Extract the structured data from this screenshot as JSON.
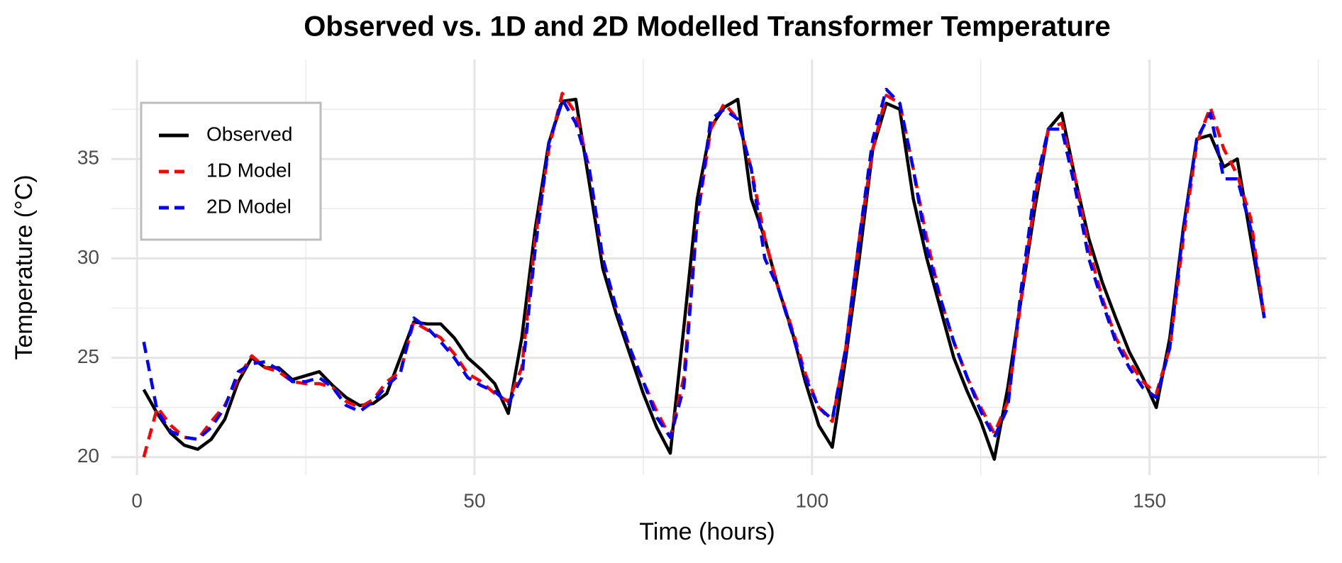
{
  "chart_data": {
    "type": "line",
    "title": "Observed vs. 1D and 2D Modelled Transformer Temperature",
    "x_label": "Time (hours)",
    "y_label": "Temperature (°C)",
    "x": [
      1,
      3,
      5,
      7,
      9,
      11,
      13,
      15,
      17,
      19,
      21,
      23,
      25,
      27,
      29,
      31,
      33,
      35,
      37,
      39,
      41,
      43,
      45,
      47,
      49,
      51,
      53,
      55,
      57,
      59,
      61,
      63,
      65,
      67,
      69,
      71,
      73,
      75,
      77,
      79,
      81,
      83,
      85,
      87,
      89,
      91,
      93,
      95,
      97,
      99,
      101,
      103,
      105,
      107,
      109,
      111,
      113,
      115,
      117,
      119,
      121,
      123,
      125,
      127,
      129,
      131,
      133,
      135,
      137,
      139,
      141,
      143,
      145,
      147,
      149,
      151,
      153,
      155,
      157,
      159,
      161,
      163,
      165,
      167
    ],
    "series": [
      {
        "name": "Observed",
        "color": "#000000",
        "linetype": "solid",
        "values": [
          23.4,
          22.2,
          21.2,
          20.6,
          20.4,
          20.9,
          21.9,
          23.8,
          25.0,
          24.5,
          24.5,
          23.9,
          24.1,
          24.3,
          23.6,
          23.0,
          22.6,
          22.7,
          23.2,
          25.0,
          26.8,
          26.7,
          26.7,
          26.0,
          25.0,
          24.4,
          23.7,
          22.2,
          26.0,
          31.5,
          35.8,
          37.9,
          38.0,
          33.8,
          29.5,
          27.2,
          25.2,
          23.2,
          21.5,
          20.2,
          26.5,
          33.0,
          36.6,
          37.6,
          38.0,
          33.0,
          31.0,
          28.5,
          26.4,
          23.8,
          21.6,
          20.5,
          25.0,
          30.0,
          35.5,
          37.8,
          37.5,
          33.0,
          30.0,
          27.5,
          25.0,
          23.3,
          21.8,
          19.9,
          23.5,
          28.0,
          32.5,
          36.5,
          37.3,
          34.0,
          31.0,
          28.8,
          27.0,
          25.3,
          24.0,
          22.5,
          26.0,
          31.5,
          36.0,
          36.2,
          34.6,
          35.0,
          31.0,
          27.0
        ]
      },
      {
        "name": "1D Model",
        "color": "#ff0000",
        "linetype": "dashed",
        "values": [
          20.0,
          22.5,
          21.6,
          21.0,
          20.9,
          21.8,
          22.6,
          24.0,
          25.1,
          24.5,
          24.3,
          23.8,
          23.7,
          23.7,
          23.5,
          22.8,
          22.5,
          22.9,
          23.8,
          24.3,
          26.8,
          26.4,
          26.0,
          25.2,
          24.2,
          23.8,
          23.2,
          22.8,
          24.5,
          31.0,
          35.5,
          38.3,
          37.3,
          34.5,
          30.0,
          27.5,
          25.5,
          23.8,
          22.3,
          21.0,
          24.0,
          32.0,
          36.5,
          37.8,
          37.0,
          34.5,
          31.0,
          28.5,
          26.5,
          24.2,
          22.5,
          21.8,
          25.5,
          31.0,
          35.5,
          38.2,
          37.8,
          34.5,
          31.0,
          28.0,
          25.8,
          24.0,
          22.5,
          21.2,
          22.8,
          28.0,
          33.0,
          36.5,
          36.8,
          34.0,
          30.5,
          28.0,
          26.0,
          24.8,
          23.8,
          23.2,
          25.5,
          31.0,
          35.8,
          37.6,
          35.5,
          34.2,
          32.0,
          27.0
        ]
      },
      {
        "name": "2D Model",
        "color": "#0000ff",
        "linetype": "dashed",
        "values": [
          25.8,
          22.3,
          21.3,
          21.0,
          20.9,
          21.5,
          22.5,
          24.3,
          24.7,
          24.8,
          24.4,
          23.8,
          23.8,
          24.0,
          23.5,
          22.6,
          22.3,
          22.8,
          23.6,
          24.2,
          27.0,
          26.5,
          25.8,
          25.0,
          24.0,
          23.6,
          23.3,
          22.7,
          24.0,
          30.5,
          35.8,
          38.0,
          36.8,
          34.5,
          30.0,
          27.5,
          25.5,
          23.8,
          22.0,
          21.0,
          23.5,
          32.0,
          37.0,
          37.5,
          37.0,
          34.5,
          30.0,
          28.5,
          26.3,
          24.0,
          22.5,
          21.9,
          25.5,
          31.0,
          36.0,
          38.5,
          37.8,
          34.5,
          30.5,
          28.0,
          25.8,
          24.0,
          22.3,
          21.0,
          22.5,
          28.5,
          33.5,
          36.5,
          36.5,
          33.5,
          30.0,
          27.8,
          25.8,
          24.5,
          23.5,
          23.0,
          25.5,
          31.5,
          36.0,
          37.3,
          34.0,
          34.0,
          31.5,
          27.0
        ]
      }
    ],
    "xlim": [
      -3.8,
      176.2
    ],
    "ylim": [
      19.1,
      40
    ],
    "xticks": [
      0,
      50,
      100,
      150
    ],
    "yticks": [
      20,
      25,
      30,
      35
    ],
    "x_minor_grid": [
      25,
      75,
      125,
      175
    ],
    "y_minor_grid": [
      22.5,
      27.5,
      32.5,
      37.5
    ],
    "grid": true,
    "legend_position": "top-left"
  }
}
